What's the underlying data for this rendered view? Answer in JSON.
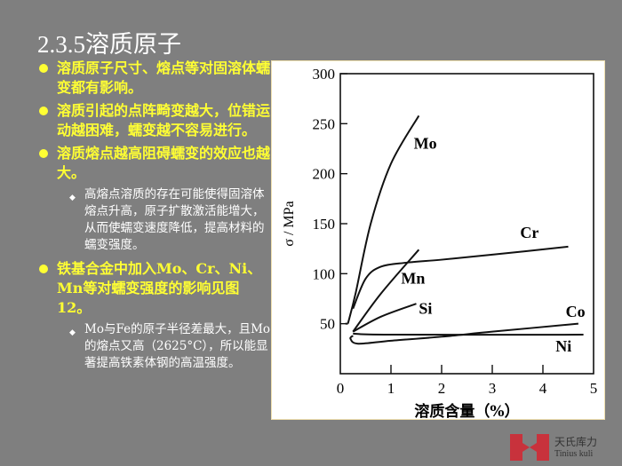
{
  "title": "2.3.5溶质原子",
  "bullets": [
    {
      "text": "溶质原子尺寸、熔点等对固溶体蠕变都有影响。",
      "subs": []
    },
    {
      "text": "溶质引起的点阵畸变越大，位错运动越困难，蠕变越不容易进行。",
      "subs": []
    },
    {
      "text": "溶质熔点越高阻碍蠕变的效应也越大。",
      "subs": [
        "高熔点溶质的存在可能使得固溶体熔点升高，原子扩散激活能增大，从而使蠕变速度降低，提高材料的蠕变强度。"
      ]
    },
    {
      "text": "铁基合金中加入Mo、Cr、Ni、Mn等对蠕变强度的影响见图12。",
      "subs": [
        "Mo与Fe的原子半径差最大，且Mo的熔点又高（2625°C），所以能显著提高铁素体钢的高温强度。"
      ]
    }
  ],
  "logo": {
    "name": "天氏库力",
    "sub": "Tinius kuli",
    "color": "#c8323c"
  },
  "colors": {
    "background": "#7f7f7f",
    "bullet": "#ffff33",
    "title": "#ffffff"
  },
  "chart_data": {
    "type": "line",
    "title": "",
    "xlabel": "溶质含量（%）",
    "ylabel": "σ / MPa",
    "xlim": [
      0,
      5
    ],
    "ylim": [
      0,
      300
    ],
    "xticks": [
      "0",
      "1",
      "2",
      "3",
      "4",
      "5"
    ],
    "yticks": [
      "50",
      "100",
      "150",
      "200",
      "250",
      "300"
    ],
    "grid": false,
    "series": [
      {
        "name": "Mo",
        "points": [
          [
            0.15,
            50
          ],
          [
            0.3,
            80
          ],
          [
            0.6,
            150
          ],
          [
            1.0,
            210
          ],
          [
            1.55,
            258
          ]
        ],
        "label_at": [
          1.45,
          225
        ]
      },
      {
        "name": "Cr",
        "points": [
          [
            0.25,
            65
          ],
          [
            0.5,
            95
          ],
          [
            0.8,
            107
          ],
          [
            1.3,
            111
          ],
          [
            2,
            114
          ],
          [
            3,
            119
          ],
          [
            4.5,
            127
          ]
        ],
        "label_at": [
          3.55,
          136
        ]
      },
      {
        "name": "Mn",
        "points": [
          [
            0.25,
            42
          ],
          [
            0.8,
            80
          ],
          [
            1.55,
            124
          ]
        ],
        "label_at": [
          1.2,
          90
        ]
      },
      {
        "name": "Si",
        "points": [
          [
            0.25,
            42
          ],
          [
            0.8,
            57
          ],
          [
            1.5,
            70
          ]
        ],
        "label_at": [
          1.55,
          60
        ]
      },
      {
        "name": "Co",
        "points": [
          [
            0.25,
            38
          ],
          [
            0.2,
            35
          ],
          [
            0.35,
            30
          ],
          [
            1,
            33
          ],
          [
            2,
            37
          ],
          [
            3,
            42
          ],
          [
            4.7,
            50
          ]
        ],
        "label_at": [
          4.45,
          57
        ]
      },
      {
        "name": "Ni",
        "points": [
          [
            0.25,
            40
          ],
          [
            1,
            39
          ],
          [
            4.8,
            39
          ]
        ],
        "label_at": [
          4.25,
          22
        ]
      }
    ]
  }
}
